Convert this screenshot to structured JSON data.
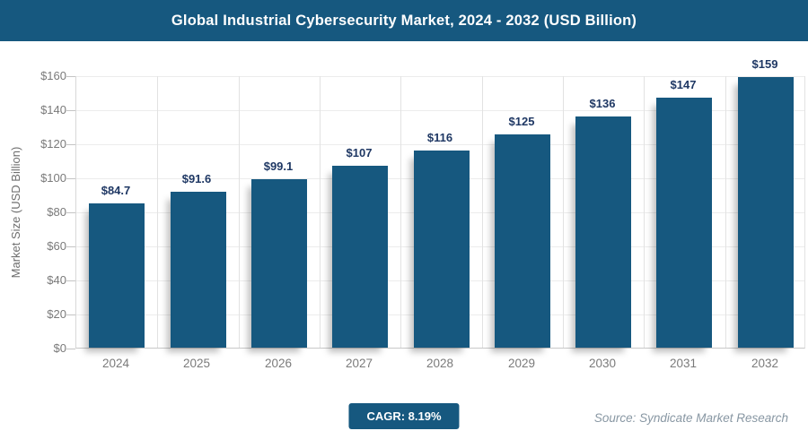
{
  "header": {
    "title": "Global Industrial Cybersecurity Market, 2024 - 2032 (USD Billion)"
  },
  "chart_data": {
    "type": "bar",
    "title": "Global Industrial Cybersecurity Market, 2024 - 2032 (USD Billion)",
    "categories": [
      "2024",
      "2025",
      "2026",
      "2027",
      "2028",
      "2029",
      "2030",
      "2031",
      "2032"
    ],
    "values": [
      84.7,
      91.6,
      99.1,
      107,
      116,
      125,
      136,
      147,
      159
    ],
    "bar_labels": [
      "$84.7",
      "$91.6",
      "$99.1",
      "$107",
      "$116",
      "$125",
      "$136",
      "$147",
      "$159"
    ],
    "xlabel": "",
    "ylabel": "Market Size (USD Billion)",
    "ylim": [
      0,
      160
    ],
    "ytick_step": 20,
    "ytick_labels": [
      "$0",
      "$20",
      "$40",
      "$60",
      "$80",
      "$100",
      "$120",
      "$140",
      "$160"
    ],
    "grid": true,
    "legend": "none",
    "bar_color": "#16587f",
    "value_label_color": "#1f3864"
  },
  "footer": {
    "cagr_badge": "CAGR: 8.19%",
    "source": "Source: Syndicate Market Research"
  },
  "colors": {
    "header_bg": "#16587f",
    "header_text": "#ffffff",
    "axis_text": "#7a7a7a",
    "grid_horizontal": "#ececec",
    "grid_vertical": "#e2e2e2",
    "axis_line": "#c8c8c8",
    "badge_bg": "#16587f",
    "badge_text": "#ffffff",
    "source_text": "#8897a3"
  }
}
